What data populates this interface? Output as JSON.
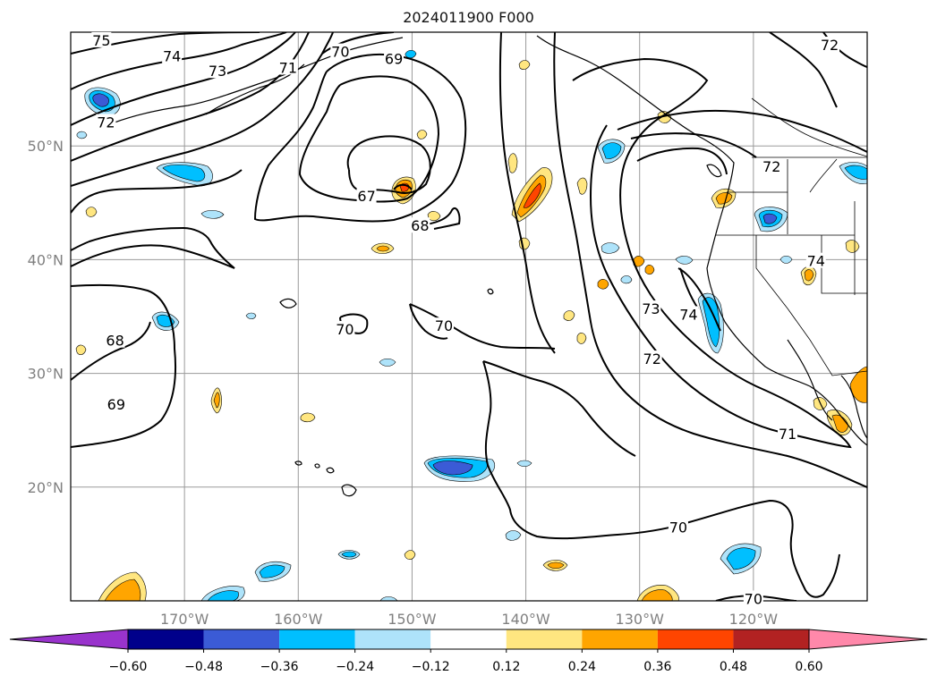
{
  "chart_data": {
    "type": "contour map",
    "title": "2024011900 F000",
    "map": {
      "lon_range": [
        -180,
        -110
      ],
      "lat_range": [
        10,
        60
      ],
      "lon_ticks": [
        {
          "value": -170,
          "label": "170°W"
        },
        {
          "value": -160,
          "label": "160°W"
        },
        {
          "value": -150,
          "label": "150°W"
        },
        {
          "value": -140,
          "label": "140°W"
        },
        {
          "value": -130,
          "label": "130°W"
        },
        {
          "value": -120,
          "label": "120°W"
        }
      ],
      "lat_ticks": [
        {
          "value": 20,
          "label": "20°N"
        },
        {
          "value": 30,
          "label": "30°N"
        },
        {
          "value": 40,
          "label": "40°N"
        },
        {
          "value": 50,
          "label": "50°N"
        }
      ],
      "grid": true
    },
    "contour_labels": [
      {
        "text": "75",
        "lon": -177.3,
        "lat": 59.3
      },
      {
        "text": "74",
        "lon": -171.1,
        "lat": 57.9
      },
      {
        "text": "73",
        "lon": -167.1,
        "lat": 56.6
      },
      {
        "text": "72",
        "lon": -176.9,
        "lat": 52.1
      },
      {
        "text": "71",
        "lon": -160.9,
        "lat": 56.9
      },
      {
        "text": "70",
        "lon": -156.3,
        "lat": 58.3
      },
      {
        "text": "69",
        "lon": -151.6,
        "lat": 57.7
      },
      {
        "text": "67",
        "lon": -154.0,
        "lat": 45.6
      },
      {
        "text": "68",
        "lon": -149.3,
        "lat": 43.0
      },
      {
        "text": "70",
        "lon": -155.9,
        "lat": 33.9
      },
      {
        "text": "70",
        "lon": -147.2,
        "lat": 34.2
      },
      {
        "text": "68",
        "lon": -176.1,
        "lat": 32.9
      },
      {
        "text": "69",
        "lon": -176.0,
        "lat": 27.3
      },
      {
        "text": "72",
        "lon": -113.3,
        "lat": 58.9
      },
      {
        "text": "72",
        "lon": -118.4,
        "lat": 48.2
      },
      {
        "text": "73",
        "lon": -129.0,
        "lat": 35.7
      },
      {
        "text": "74",
        "lon": -125.7,
        "lat": 35.2
      },
      {
        "text": "74",
        "lon": -114.5,
        "lat": 39.9
      },
      {
        "text": "72",
        "lon": -128.9,
        "lat": 31.3
      },
      {
        "text": "71",
        "lon": -117.0,
        "lat": 24.7
      },
      {
        "text": "70",
        "lon": -126.6,
        "lat": 16.5
      },
      {
        "text": "70",
        "lon": -120.0,
        "lat": 10.2
      }
    ],
    "colorbar": {
      "levels": [
        -0.6,
        -0.48,
        -0.36,
        -0.24,
        -0.12,
        0.12,
        0.24,
        0.36,
        0.48,
        0.6
      ],
      "tick_labels": [
        "−0.60",
        "−0.48",
        "−0.36",
        "−0.24",
        "−0.12",
        "0.12",
        "0.24",
        "0.36",
        "0.48",
        "0.60"
      ],
      "colors": [
        "#9933cc",
        "#00008b",
        "#3b5bd6",
        "#00bfff",
        "#aee3fa",
        "#ffffff",
        "#ffe680",
        "#ffa500",
        "#ff4500",
        "#b22222",
        "#ff88aa"
      ],
      "extend": "both"
    }
  }
}
